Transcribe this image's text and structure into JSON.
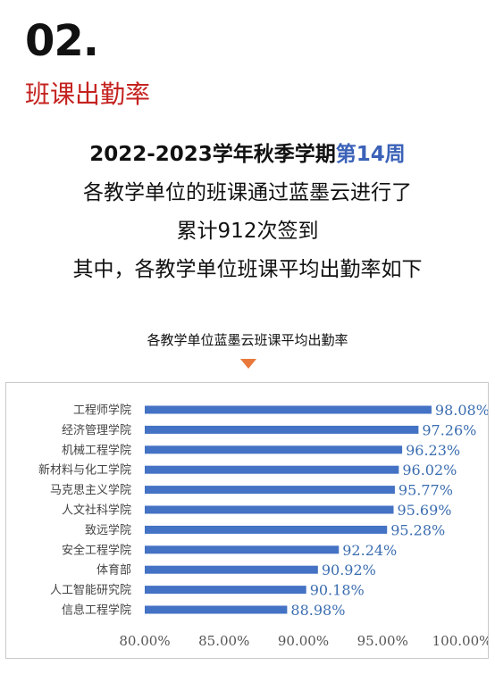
{
  "header": {
    "section_number": "02.",
    "section_title": "班课出勤率"
  },
  "intro": {
    "line1_prefix": "2022-2023学年秋季学期",
    "line1_week": "第14周",
    "line2": "各教学单位的班课通过蓝墨云进行了",
    "line3": "累计912次签到",
    "line4": "其中，各教学单位班课平均出勤率如下"
  },
  "chart_header": {
    "title": "各教学单位蓝墨云班课平均出勤率"
  },
  "colors": {
    "accent_red": "#c4221f",
    "accent_blue": "#3b62b8",
    "bar": "#4472c4",
    "triangle": "#e8793a"
  },
  "chart_data": {
    "type": "bar",
    "orientation": "horizontal",
    "title": "各教学单位蓝墨云班课平均出勤率",
    "categories": [
      "工程师学院",
      "经济管理学院",
      "机械工程学院",
      "新材料与化工学院",
      "马克思主义学院",
      "人文社科学院",
      "致远学院",
      "安全工程学院",
      "体育部",
      "人工智能研究院",
      "信息工程学院"
    ],
    "values": [
      98.08,
      97.26,
      96.23,
      96.02,
      95.77,
      95.69,
      95.28,
      92.24,
      90.92,
      90.18,
      88.98
    ],
    "value_labels": [
      "98.08%",
      "97.26%",
      "96.23%",
      "96.02%",
      "95.77%",
      "95.69%",
      "95.28%",
      "92.24%",
      "90.92%",
      "90.18%",
      "88.98%"
    ],
    "xlim": [
      80,
      100
    ],
    "xticks": [
      80,
      85,
      90,
      95,
      100
    ],
    "xtick_labels": [
      "80.00%",
      "85.00%",
      "90.00%",
      "95.00%",
      "100.00%"
    ],
    "xlabel": "",
    "ylabel": "",
    "grid": false,
    "legend": "none"
  }
}
